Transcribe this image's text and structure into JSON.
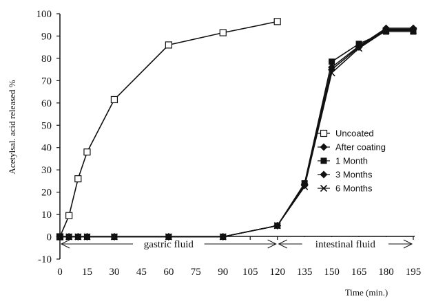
{
  "chart_data": {
    "type": "line",
    "xlabel": "Time (min.)",
    "ylabel": "Acetylsal. acid released %",
    "xlim": [
      0,
      195
    ],
    "ylim": [
      -10,
      100
    ],
    "x_ticks": [
      "0",
      "15",
      "30",
      "45",
      "60",
      "75",
      "90",
      "105",
      "120",
      "135",
      "150",
      "165",
      "180",
      "195"
    ],
    "y_ticks": [
      "-10",
      "0",
      "10",
      "20",
      "30",
      "40",
      "50",
      "60",
      "70",
      "80",
      "90",
      "100"
    ],
    "grid": false,
    "legend_placement": "right",
    "series": [
      {
        "name": "Uncoated",
        "marker": "open-square",
        "x": [
          0,
          5,
          10,
          15,
          30,
          60,
          90,
          120
        ],
        "y": [
          0,
          9.5,
          26,
          38,
          61.5,
          86,
          91.5,
          96.5
        ]
      },
      {
        "name": "After coating",
        "marker": "diamond",
        "x": [
          0,
          5,
          10,
          15,
          30,
          60,
          90,
          120,
          135,
          150,
          165,
          180,
          195
        ],
        "y": [
          0,
          0,
          0,
          0,
          0,
          0,
          0,
          5,
          23.5,
          76,
          85.5,
          93.5,
          93.5
        ]
      },
      {
        "name": "1 Month",
        "marker": "filled-square",
        "x": [
          0,
          5,
          10,
          15,
          30,
          60,
          90,
          120,
          135,
          150,
          165,
          180,
          195
        ],
        "y": [
          0,
          0,
          0,
          0,
          0,
          0,
          0,
          5,
          24,
          78.5,
          86.5,
          92,
          92
        ]
      },
      {
        "name": "3 Months",
        "marker": "diamond",
        "x": [
          0,
          5,
          10,
          15,
          30,
          60,
          90,
          120,
          135,
          150,
          165,
          180,
          195
        ],
        "y": [
          0,
          0,
          0,
          0,
          0,
          0,
          0,
          5,
          23,
          75,
          85,
          93,
          93
        ]
      },
      {
        "name": "6 Months",
        "marker": "x",
        "x": [
          0,
          5,
          10,
          15,
          30,
          60,
          90,
          120,
          135,
          150,
          165,
          180,
          195
        ],
        "y": [
          0,
          0,
          0,
          0,
          0,
          0,
          0,
          5,
          22.5,
          73.5,
          84.5,
          92.5,
          92.5
        ]
      }
    ],
    "annotations": [
      {
        "text": "gastric fluid",
        "x_from": 0,
        "x_to": 120
      },
      {
        "text": "intestinal fluid",
        "x_from": 120,
        "x_to": 195
      }
    ]
  }
}
